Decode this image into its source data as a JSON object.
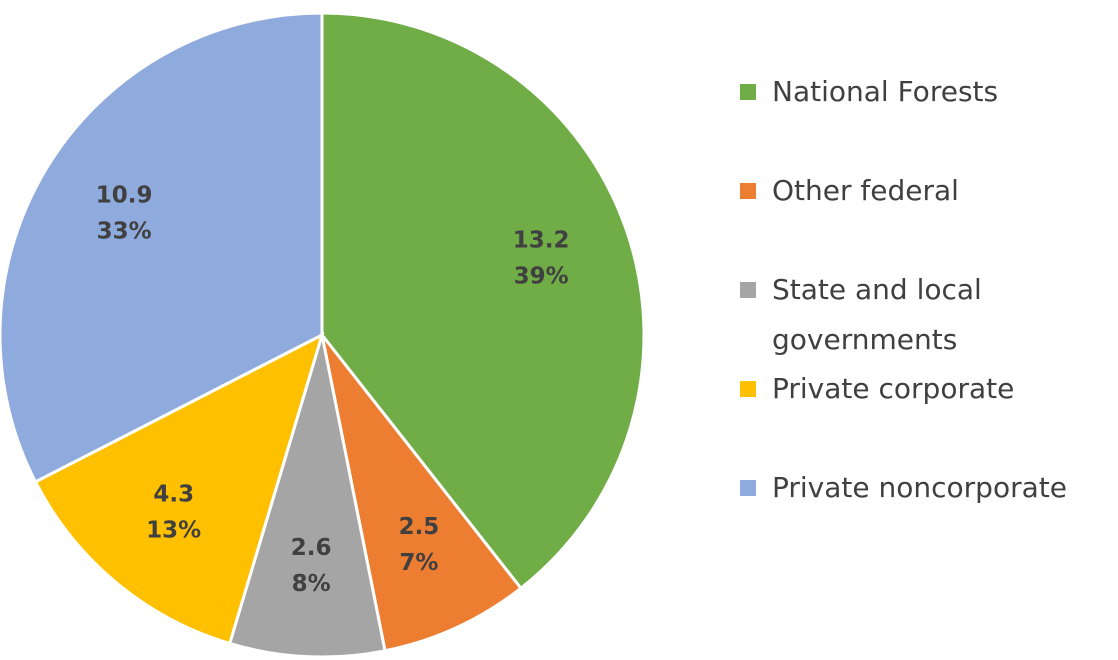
{
  "chart_data": {
    "type": "pie",
    "categories": [
      "National Forests",
      "Other federal",
      "State and local governments",
      "Private corporate",
      "Private noncorporate"
    ],
    "values": [
      13.2,
      2.5,
      2.6,
      4.3,
      10.9
    ],
    "percent_labels": [
      "39%",
      "7%",
      "8%",
      "13%",
      "33%"
    ],
    "colors": [
      "#70ad47",
      "#ed7d31",
      "#a5a5a5",
      "#ffc000",
      "#8faadc"
    ],
    "legend": "right"
  }
}
